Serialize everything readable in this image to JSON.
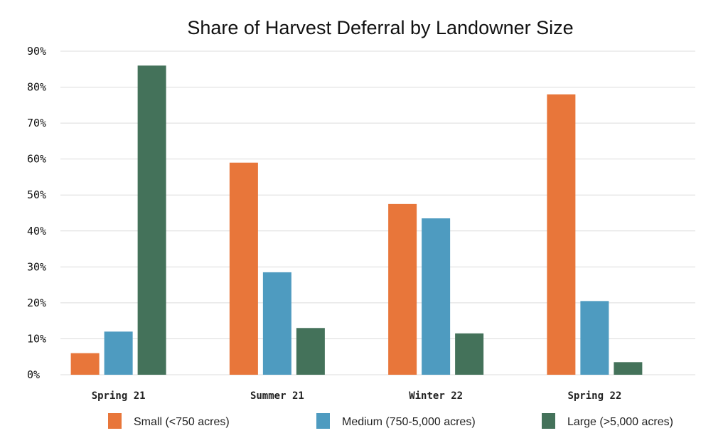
{
  "chart_data": {
    "type": "bar",
    "title": "Share of Harvest Deferral by Landowner Size",
    "xlabel": "",
    "ylabel": "",
    "categories": [
      "Spring 21",
      "Summer 21",
      "Winter 22",
      "Spring 22"
    ],
    "series": [
      {
        "name": "Small (<750 acres)",
        "color": "#E8763A",
        "values": [
          6,
          59,
          47.5,
          78
        ]
      },
      {
        "name": "Medium (750-5,000 acres)",
        "color": "#4E9BC0",
        "values": [
          12,
          28.5,
          43.5,
          20.5
        ]
      },
      {
        "name": "Large (>5,000 acres)",
        "color": "#44725A",
        "values": [
          86,
          13,
          11.5,
          3.5
        ]
      }
    ],
    "ylim": [
      0,
      90
    ],
    "yticks": [
      0,
      10,
      20,
      30,
      40,
      50,
      60,
      70,
      80,
      90
    ],
    "ytick_labels": [
      "0%",
      "10%",
      "20%",
      "30%",
      "40%",
      "50%",
      "60%",
      "70%",
      "80%",
      "90%"
    ],
    "grid": true,
    "legend_position": "bottom"
  }
}
